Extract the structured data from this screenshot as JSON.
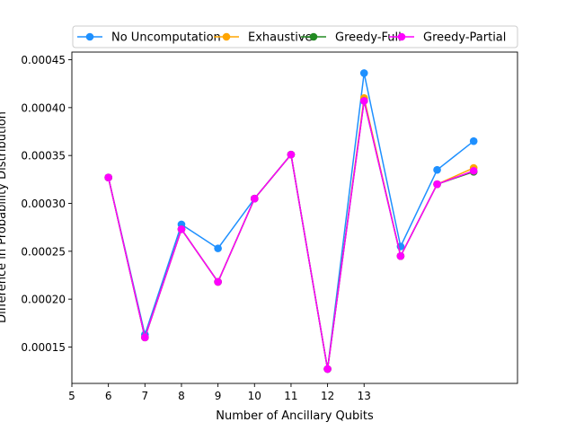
{
  "chart_data": {
    "type": "line",
    "xlabel": "Number of Ancillary Qubits",
    "ylabel": "Difference in Probability Distribution",
    "x_ticks": [
      5,
      6,
      7,
      8,
      9,
      10,
      11,
      12,
      13
    ],
    "xlim": [
      5,
      17.2
    ],
    "y_ticks": [
      "0.00015",
      "0.00020",
      "0.00025",
      "0.00030",
      "0.00035",
      "0.00040",
      "0.00045"
    ],
    "ylim": [
      0.000112,
      0.000458
    ],
    "legend_position": "top-center",
    "x": [
      6,
      7,
      8,
      9,
      10,
      11,
      12,
      13,
      14,
      15,
      16
    ],
    "series": [
      {
        "name": "No Uncomputation",
        "color": "#1e90ff",
        "values": [
          0.000327,
          0.000163,
          0.000278,
          0.000253,
          0.000305,
          0.000351,
          0.000127,
          0.000436,
          0.000255,
          0.000335,
          0.000365
        ]
      },
      {
        "name": "Exhaustive",
        "color": "#ffa500",
        "values": [
          0.000327,
          0.00016,
          0.000273,
          0.000218,
          0.000305,
          0.000351,
          0.000127,
          0.00041,
          0.000245,
          0.00032,
          0.000337
        ]
      },
      {
        "name": "Greedy-Full",
        "color": "#228b22",
        "values": [
          0.000327,
          0.00016,
          0.000273,
          0.000218,
          0.000305,
          0.000351,
          0.000127,
          0.000407,
          0.000245,
          0.00032,
          0.000333
        ]
      },
      {
        "name": "Greedy-Partial",
        "color": "#ff00ff",
        "values": [
          0.000327,
          0.00016,
          0.000273,
          0.000218,
          0.000305,
          0.000351,
          0.000127,
          0.000407,
          0.000245,
          0.00032,
          0.000334
        ]
      }
    ]
  }
}
